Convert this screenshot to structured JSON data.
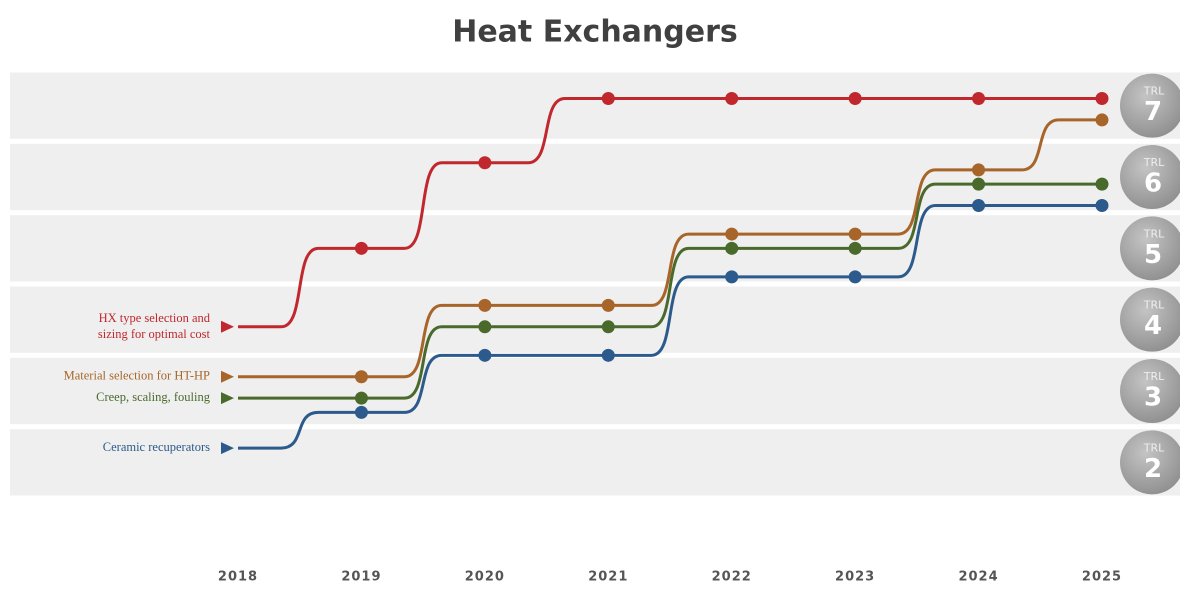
{
  "chart_data": {
    "type": "step-line",
    "title": "Heat Exchangers",
    "categories": [
      "2018",
      "2019",
      "2020",
      "2021",
      "2022",
      "2023",
      "2024",
      "2025"
    ],
    "ylim": [
      1.5,
      7.5
    ],
    "ytick_prefix": "TRL",
    "yticks": [
      2,
      3,
      4,
      5,
      6,
      7
    ],
    "series": [
      {
        "name": "HX type selection and\nsizing for optimal cost",
        "color": "#c0282d",
        "values": [
          3.9,
          5.0,
          6.2,
          7.1,
          7.1,
          7.1,
          7.1,
          7.1
        ]
      },
      {
        "name": "Material selection for HT-HP",
        "color": "#a8652a",
        "values": [
          3.2,
          3.2,
          4.2,
          4.2,
          5.2,
          5.2,
          6.1,
          6.8
        ]
      },
      {
        "name": "Creep, scaling, fouling",
        "color": "#4a6a2c",
        "values": [
          2.9,
          2.9,
          3.9,
          3.9,
          5.0,
          5.0,
          5.9,
          5.9
        ]
      },
      {
        "name": "Ceramic recuperators",
        "color": "#2d5a8c",
        "values": [
          2.2,
          2.7,
          3.5,
          3.5,
          4.6,
          4.6,
          5.6,
          5.6
        ]
      }
    ]
  }
}
